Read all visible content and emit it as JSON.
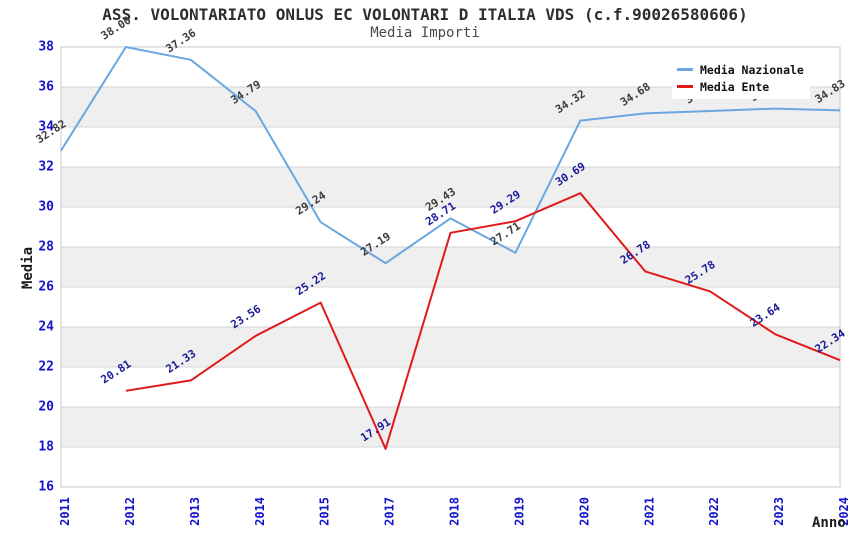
{
  "chart_data": {
    "type": "line",
    "title": "ASS. VOLONTARIATO ONLUS EC VOLONTARI D ITALIA VDS (c.f.90026580606)",
    "subtitle": "Media Importi",
    "xlabel": "Anno",
    "ylabel": "Media",
    "x": [
      "2011",
      "2012",
      "2013",
      "2014",
      "2015",
      "2017",
      "2018",
      "2019",
      "2020",
      "2021",
      "2022",
      "2023",
      "2024"
    ],
    "ylim": [
      16,
      38
    ],
    "ytick_step": 2,
    "grid": "horizontal-stripes",
    "legend_position": "top-right",
    "series": [
      {
        "name": "Media Nazionale",
        "color": "#6aa6e0",
        "label_color": "#3c3c3c",
        "values": [
          32.82,
          38.0,
          37.36,
          34.79,
          29.24,
          27.19,
          29.43,
          27.71,
          34.32,
          34.68,
          34.8,
          34.92,
          34.83
        ],
        "labels": [
          "32.82",
          "38.00",
          "37.36",
          "34.79",
          "29.24",
          "27.19",
          "29.43",
          "27.71",
          "34.32",
          "34.68",
          "34.80",
          "34.92",
          "34.83"
        ]
      },
      {
        "name": "Media Ente",
        "color": "#e01a1a",
        "label_color": "#1a1a99",
        "values": [
          null,
          20.81,
          21.33,
          23.56,
          25.22,
          17.91,
          28.71,
          29.29,
          30.69,
          26.78,
          25.78,
          23.64,
          22.34
        ],
        "labels": [
          "",
          "20.81",
          "21.33",
          "23.56",
          "25.22",
          "17.91",
          "28.71",
          "29.29",
          "30.69",
          "26.78",
          "25.78",
          "23.64",
          "22.34"
        ]
      }
    ]
  },
  "legend": {
    "items": [
      {
        "label": "Media Nazionale",
        "color": "#6aa6e0"
      },
      {
        "label": "Media Ente",
        "color": "#e01a1a"
      }
    ]
  },
  "colors": {
    "tick_label": "#1414cc",
    "stripe": "#efefef",
    "gridline": "#d6d6d6",
    "plot_border": "#c8c8c8",
    "title": "#2e2e2e",
    "subtitle": "#4a4a4a"
  }
}
